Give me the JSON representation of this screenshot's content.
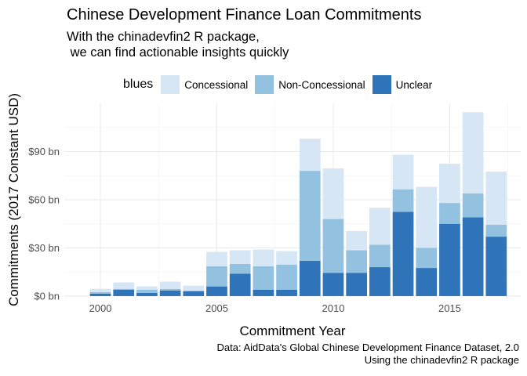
{
  "title": "Chinese Development Finance Loan Commitments",
  "subtitle": "With the chinadevfin2 R package,\n we can find actionable insights quickly",
  "legend": {
    "title": "blues",
    "items": [
      {
        "label": "Concessional",
        "color": "#d6e6f5"
      },
      {
        "label": "Non-Concessional",
        "color": "#93c2e0"
      },
      {
        "label": "Unclear",
        "color": "#2f73b8"
      }
    ]
  },
  "caption": {
    "line1": "Data: AidData's Global Chinese Development Finance Dataset, 2.0",
    "line2": "Using the chinadevfin2 R package"
  },
  "chart_data": {
    "type": "bar",
    "stacked": true,
    "x": [
      2000,
      2001,
      2002,
      2003,
      2004,
      2005,
      2006,
      2007,
      2008,
      2009,
      2010,
      2011,
      2012,
      2013,
      2014,
      2015,
      2016,
      2017
    ],
    "series": [
      {
        "name": "Unclear",
        "values": [
          1.5,
          4,
          2,
          3.5,
          3,
          6,
          14,
          4,
          4,
          22,
          14.5,
          14.5,
          18,
          52.5,
          17.5,
          45,
          49,
          37
        ]
      },
      {
        "name": "Non-Concessional",
        "values": [
          1,
          0.5,
          2,
          1,
          0.5,
          12.5,
          6,
          14.5,
          15.5,
          56,
          33.5,
          14,
          14,
          14,
          12.5,
          13,
          15,
          7.5
        ]
      },
      {
        "name": "Concessional",
        "values": [
          2,
          4,
          2,
          4.5,
          3,
          9,
          8.5,
          10.5,
          8.5,
          20,
          31.5,
          12,
          23,
          21.5,
          38,
          24.5,
          50.5,
          33
        ]
      }
    ],
    "xlabel": "Commitment Year",
    "ylabel": "Commitments (2017 Constant USD)",
    "xticks": [
      2000,
      2005,
      2010,
      2015
    ],
    "xtick_labels": [
      "2000",
      "2005",
      "2010",
      "2015"
    ],
    "yticks": [
      0,
      30,
      60,
      90
    ],
    "ytick_labels": [
      "$0 bn",
      "$30 bn",
      "$60 bn",
      "$90 bn"
    ],
    "xlim": [
      1998.45,
      2018.05
    ],
    "ylim": [
      -1,
      120
    ],
    "grid": true,
    "legend_position": "top"
  }
}
